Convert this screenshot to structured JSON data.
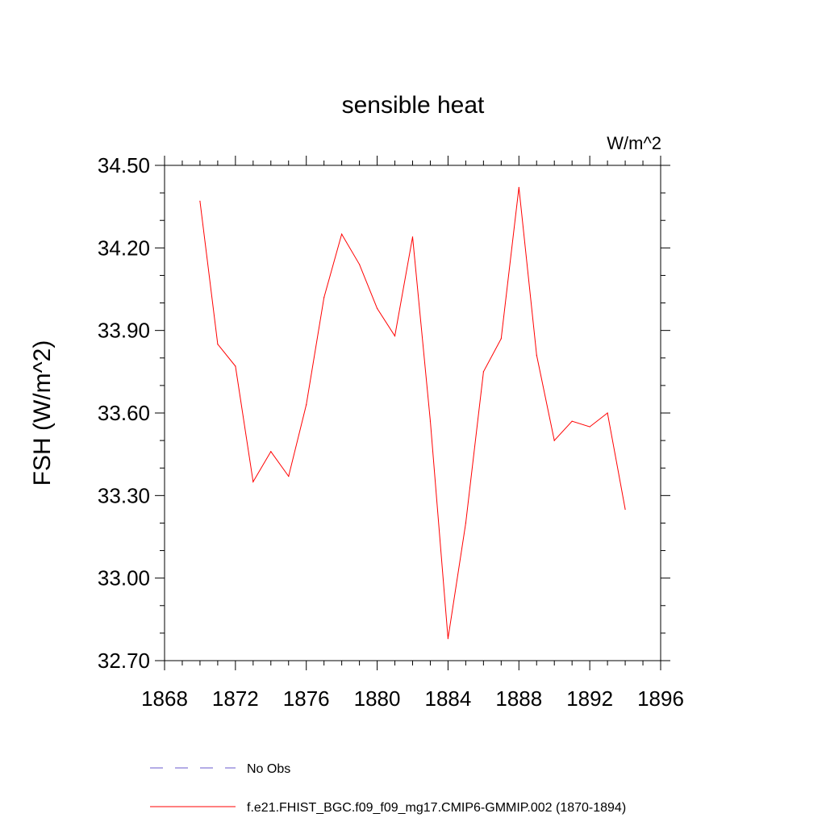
{
  "chart_data": {
    "type": "line",
    "title": "sensible heat",
    "units_label": "W/m^2",
    "ylabel": "FSH  (W/m^2)",
    "xlabel": "",
    "xlim": [
      1868,
      1896
    ],
    "ylim": [
      32.7,
      34.5
    ],
    "x_ticks": [
      1868,
      1872,
      1876,
      1880,
      1884,
      1888,
      1892,
      1896
    ],
    "x_tick_labels": [
      "1868",
      "1872",
      "1876",
      "1880",
      "1884",
      "1888",
      "1892",
      "1896"
    ],
    "y_ticks": [
      32.7,
      33.0,
      33.3,
      33.6,
      33.9,
      34.2,
      34.5
    ],
    "y_tick_labels": [
      "32.70",
      "33.00",
      "33.30",
      "33.60",
      "33.90",
      "34.20",
      "34.50"
    ],
    "grid": false,
    "legend_position": "bottom",
    "series": [
      {
        "name": "f.e21.FHIST_BGC.f09_f09_mg17.CMIP6-GMMIP.002 (1870-1894)",
        "color": "#ff0000",
        "line_style": "solid",
        "x": [
          1870,
          1871,
          1872,
          1873,
          1874,
          1875,
          1876,
          1877,
          1878,
          1879,
          1880,
          1881,
          1882,
          1883,
          1884,
          1885,
          1886,
          1887,
          1888,
          1889,
          1890,
          1891,
          1892,
          1893,
          1894
        ],
        "y": [
          34.37,
          33.85,
          33.77,
          33.35,
          33.46,
          33.37,
          33.63,
          34.02,
          34.25,
          34.14,
          33.98,
          33.88,
          34.24,
          33.57,
          32.78,
          33.2,
          33.75,
          33.87,
          34.42,
          33.81,
          33.5,
          33.57,
          33.55,
          33.6,
          33.25
        ]
      }
    ],
    "legend": [
      {
        "label": "No Obs",
        "color": "#6a5acd",
        "line_style": "dashed"
      },
      {
        "label": "f.e21.FHIST_BGC.f09_f09_mg17.CMIP6-GMMIP.002 (1870-1894)",
        "color": "#ff0000",
        "line_style": "solid"
      }
    ]
  }
}
